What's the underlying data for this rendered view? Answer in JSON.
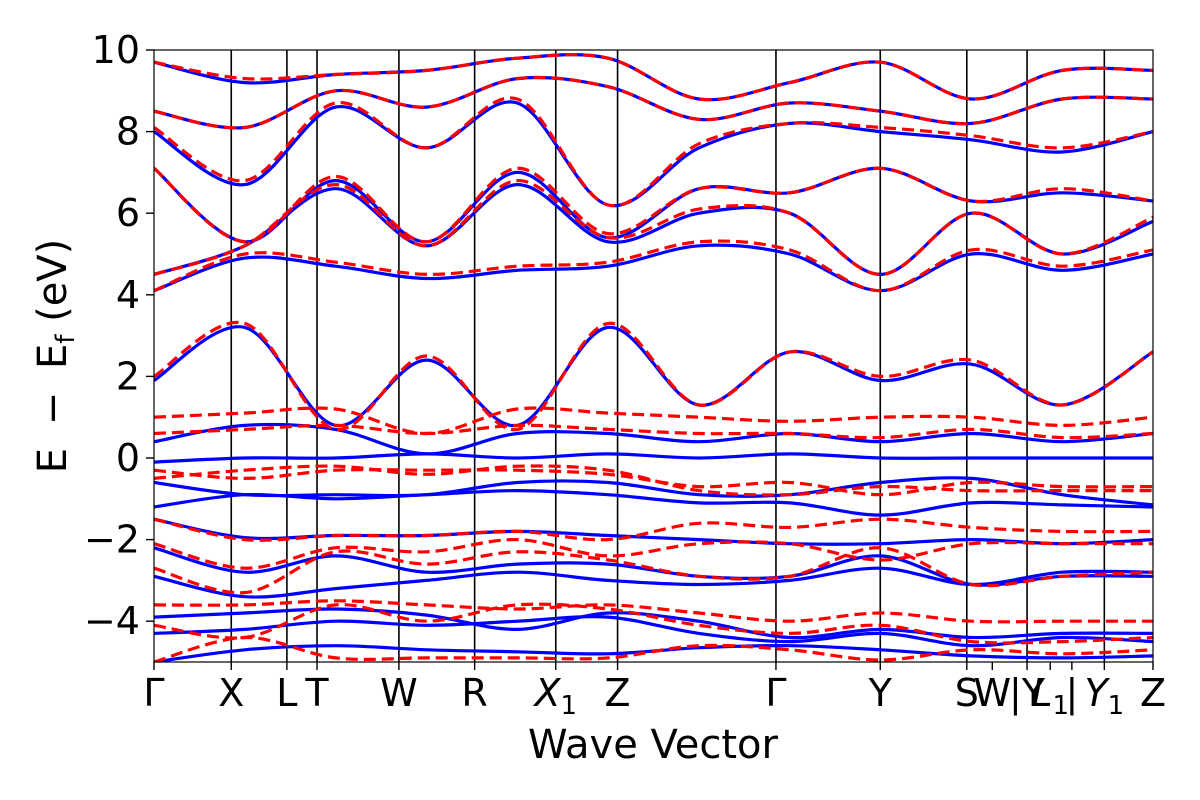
{
  "chart_data": {
    "type": "line",
    "title": "",
    "xlabel": "Wave Vector",
    "ylabel_parts": {
      "e": "E",
      "minus": "−",
      "ef": "E",
      "sub": "f",
      "unit": " (eV)"
    },
    "ylim": [
      -5,
      10
    ],
    "xlim": [
      0,
      12.93
    ],
    "y_ticks": [
      {
        "value": 10,
        "label": "10"
      },
      {
        "value": 8,
        "label": "8"
      },
      {
        "value": 6,
        "label": "6"
      },
      {
        "value": 4,
        "label": "4"
      },
      {
        "value": 2,
        "label": "2"
      },
      {
        "value": 0,
        "label": "0"
      },
      {
        "value": -2,
        "label": "−2"
      },
      {
        "value": -4,
        "label": "−4"
      }
    ],
    "k_points": [
      {
        "label": "Γ",
        "sub": "",
        "x": 0.0
      },
      {
        "label": "X",
        "sub": "",
        "x": 1.0
      },
      {
        "label": "L",
        "sub": "",
        "x": 1.72
      },
      {
        "label": "T",
        "sub": "",
        "x": 2.11
      },
      {
        "label": "W",
        "sub": "",
        "x": 3.17
      },
      {
        "label": "R",
        "sub": "",
        "x": 4.15
      },
      {
        "label": "X",
        "sub": "1",
        "x": 5.2
      },
      {
        "label": "Z",
        "sub": "",
        "x": 6.0
      },
      {
        "label": "Γ",
        "sub": "",
        "x": 8.05
      },
      {
        "label": "Y",
        "sub": "",
        "x": 9.4
      },
      {
        "label": "S",
        "sub": "",
        "x": 10.52
      },
      {
        "label": "W",
        "sub": "",
        "x": 10.85
      },
      {
        "label": "|Y",
        "sub": "",
        "x": 11.3
      },
      {
        "label": "L",
        "sub": "1",
        "x": 11.6
      },
      {
        "label": "|",
        "sub": "",
        "x": 11.88
      },
      {
        "label": "Y",
        "sub": "1",
        "x": 12.3
      },
      {
        "label": "Z",
        "sub": "",
        "x": 12.93
      }
    ],
    "vertical_lines": [
      1.0,
      1.72,
      2.11,
      3.17,
      4.15,
      5.2,
      6.0,
      8.05,
      9.4,
      10.52,
      11.3,
      12.3
    ],
    "series": [
      {
        "name": "blue-solid",
        "color": "#0000ff",
        "dash": "solid",
        "bands": [
          [
            -5.0,
            -4.7,
            -4.6,
            -4.7,
            -4.75,
            -4.8,
            -4.65,
            -4.6,
            -4.7,
            -4.85,
            -4.9,
            -4.85
          ],
          [
            -4.3,
            -4.2,
            -4.0,
            -4.1,
            -4.0,
            -3.9,
            -4.3,
            -4.5,
            -4.3,
            -4.6,
            -4.4,
            -4.5
          ],
          [
            -3.9,
            -3.8,
            -3.7,
            -3.85,
            -4.2,
            -3.8,
            -4.0,
            -4.4,
            -4.2,
            -4.4,
            -4.3,
            -4.3
          ],
          [
            -2.9,
            -3.4,
            -3.2,
            -3.0,
            -2.8,
            -3.0,
            -3.1,
            -3.0,
            -2.7,
            -3.1,
            -2.8,
            -2.8
          ],
          [
            -2.2,
            -2.8,
            -2.4,
            -2.8,
            -2.6,
            -2.6,
            -2.9,
            -2.9,
            -2.4,
            -3.1,
            -2.9,
            -2.9
          ],
          [
            -1.5,
            -1.95,
            -1.9,
            -1.9,
            -1.8,
            -1.9,
            -2.0,
            -2.1,
            -2.1,
            -2.0,
            -2.1,
            -2.0
          ],
          [
            -1.2,
            -0.9,
            -1.0,
            -0.9,
            -0.8,
            -0.9,
            -1.1,
            -1.1,
            -1.4,
            -1.1,
            -1.15,
            -1.2
          ],
          [
            -0.6,
            -0.9,
            -0.9,
            -0.9,
            -0.6,
            -0.6,
            -0.9,
            -0.9,
            -0.6,
            -0.5,
            -0.9,
            -1.15
          ],
          [
            -0.1,
            0.0,
            0.0,
            0.1,
            0.0,
            0.1,
            0.0,
            0.1,
            0.0,
            0.0,
            0.0,
            0.0
          ],
          [
            0.4,
            0.8,
            0.7,
            0.1,
            0.6,
            0.6,
            0.4,
            0.6,
            0.4,
            0.6,
            0.4,
            0.6
          ],
          [
            1.9,
            3.2,
            0.8,
            2.4,
            0.8,
            3.2,
            1.3,
            2.6,
            1.9,
            2.3,
            1.3,
            2.6
          ],
          [
            4.1,
            4.9,
            4.7,
            4.4,
            4.6,
            4.7,
            5.2,
            5.0,
            4.1,
            5.0,
            4.6,
            5.0
          ],
          [
            4.5,
            5.2,
            6.6,
            5.2,
            6.7,
            5.3,
            6.0,
            6.0,
            4.5,
            6.0,
            5.0,
            5.8
          ],
          [
            7.1,
            5.3,
            6.8,
            5.3,
            7.0,
            5.4,
            6.6,
            6.5,
            7.1,
            6.3,
            6.5,
            6.3
          ],
          [
            8.0,
            6.7,
            8.6,
            7.6,
            8.7,
            6.2,
            7.6,
            8.2,
            8.0,
            7.8,
            7.5,
            8.0
          ],
          [
            8.5,
            8.1,
            9.0,
            8.6,
            9.3,
            9.1,
            8.3,
            8.7,
            8.5,
            8.2,
            8.8,
            8.8
          ],
          [
            9.7,
            9.2,
            9.4,
            9.5,
            9.8,
            9.8,
            8.8,
            9.2,
            9.7,
            8.8,
            9.5,
            9.5
          ]
        ]
      },
      {
        "name": "red-dashed",
        "color": "#ff0000",
        "dash": "dashed",
        "bands": [
          [
            -5.0,
            -4.4,
            -4.9,
            -4.9,
            -4.9,
            -4.9,
            -4.6,
            -4.7,
            -4.95,
            -4.7,
            -4.8,
            -4.7
          ],
          [
            -4.1,
            -4.4,
            -3.6,
            -4.0,
            -3.6,
            -3.7,
            -4.1,
            -4.3,
            -4.1,
            -4.5,
            -4.5,
            -4.4
          ],
          [
            -3.6,
            -3.6,
            -3.5,
            -3.6,
            -3.7,
            -3.6,
            -3.8,
            -4.0,
            -3.8,
            -4.0,
            -4.0,
            -4.0
          ],
          [
            -2.7,
            -3.3,
            -2.3,
            -2.6,
            -2.3,
            -2.5,
            -2.9,
            -2.9,
            -2.2,
            -3.1,
            -2.9,
            -2.8
          ],
          [
            -2.1,
            -2.7,
            -2.2,
            -2.3,
            -2.0,
            -2.4,
            -2.1,
            -2.1,
            -2.5,
            -2.1,
            -2.1,
            -2.1
          ],
          [
            -1.5,
            -2.0,
            -1.9,
            -1.9,
            -1.8,
            -2.0,
            -1.6,
            -1.7,
            -1.5,
            -1.7,
            -1.8,
            -1.8
          ],
          [
            -0.5,
            -0.3,
            -0.2,
            -0.4,
            -0.2,
            -0.3,
            -0.8,
            -0.9,
            -0.7,
            -0.8,
            -0.8,
            -0.8
          ],
          [
            -0.3,
            -0.5,
            -0.3,
            -0.3,
            -0.3,
            -0.4,
            -0.7,
            -0.6,
            -0.9,
            -0.6,
            -0.7,
            -0.7
          ],
          [
            0.6,
            0.7,
            0.8,
            0.6,
            0.8,
            0.7,
            0.6,
            0.6,
            0.5,
            0.7,
            0.5,
            0.6
          ],
          [
            1.0,
            1.1,
            1.2,
            0.6,
            1.2,
            1.1,
            1.0,
            0.9,
            1.0,
            1.0,
            0.8,
            1.0
          ],
          [
            2.0,
            3.3,
            0.7,
            2.5,
            0.7,
            3.3,
            1.3,
            2.6,
            2.0,
            2.4,
            1.3,
            2.6
          ],
          [
            4.1,
            5.0,
            4.8,
            4.5,
            4.7,
            4.8,
            5.3,
            5.1,
            4.1,
            5.1,
            4.7,
            5.1
          ],
          [
            4.5,
            5.2,
            6.7,
            5.2,
            6.8,
            5.4,
            6.1,
            6.0,
            4.5,
            6.0,
            5.0,
            5.9
          ],
          [
            7.1,
            5.3,
            6.9,
            5.3,
            7.1,
            5.5,
            6.6,
            6.5,
            7.1,
            6.3,
            6.6,
            6.3
          ],
          [
            8.1,
            6.8,
            8.7,
            7.6,
            8.8,
            6.2,
            7.7,
            8.2,
            8.1,
            7.9,
            7.6,
            8.0
          ],
          [
            8.5,
            8.1,
            9.0,
            8.6,
            9.3,
            9.1,
            8.3,
            8.7,
            8.5,
            8.2,
            8.8,
            8.8
          ],
          [
            9.7,
            9.3,
            9.4,
            9.5,
            9.8,
            9.8,
            8.8,
            9.2,
            9.7,
            8.8,
            9.5,
            9.5
          ]
        ]
      }
    ]
  }
}
